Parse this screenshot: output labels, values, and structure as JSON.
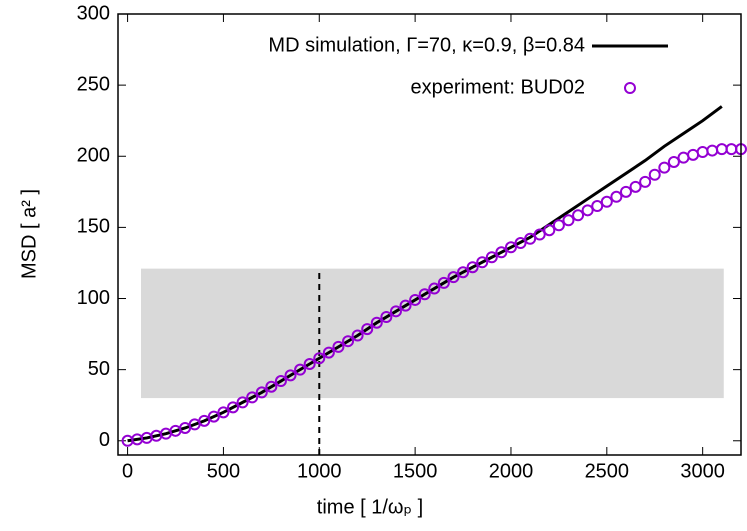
{
  "chart_data": {
    "type": "line",
    "xlabel": "time  [ 1/ωₚ ]",
    "ylabel": "MSD  [ a² ]",
    "xlim": [
      -50,
      3200
    ],
    "ylim": [
      -10,
      300
    ],
    "xticks": [
      0,
      500,
      1000,
      1500,
      2000,
      2500,
      3000
    ],
    "yticks": [
      0,
      50,
      100,
      150,
      200,
      250,
      300
    ],
    "legend": "top-right",
    "shade": {
      "x": [
        70,
        3110
      ],
      "y": [
        30,
        121
      ],
      "color": "#d9d9d9"
    },
    "vline": 1000,
    "series": [
      {
        "name": "MD simulation, Γ=70, κ=0.9, β=0.84",
        "color": "#000000",
        "style": "line",
        "x": [
          0,
          100,
          200,
          300,
          400,
          500,
          600,
          700,
          800,
          900,
          1000,
          1100,
          1200,
          1300,
          1400,
          1500,
          1600,
          1700,
          1800,
          1900,
          2000,
          2100,
          2200,
          2300,
          2400,
          2500,
          2600,
          2700,
          2800,
          2900,
          3000,
          3100
        ],
        "values": [
          0,
          2,
          5,
          9,
          14,
          20,
          27,
          34,
          42,
          50,
          58,
          66,
          74,
          83,
          91,
          99,
          107,
          115,
          122,
          129,
          136,
          143,
          152,
          161,
          170,
          179,
          188,
          197,
          207,
          216,
          225,
          235
        ]
      },
      {
        "name": "experiment: BUD02",
        "color": "#9400d3",
        "style": "points",
        "x": [
          0,
          50,
          100,
          150,
          200,
          250,
          300,
          350,
          400,
          450,
          500,
          550,
          600,
          650,
          700,
          750,
          800,
          850,
          900,
          950,
          1000,
          1050,
          1100,
          1150,
          1200,
          1250,
          1300,
          1350,
          1400,
          1450,
          1500,
          1550,
          1600,
          1650,
          1700,
          1750,
          1800,
          1850,
          1900,
          1950,
          2000,
          2050,
          2100,
          2150,
          2200,
          2250,
          2300,
          2350,
          2400,
          2450,
          2500,
          2550,
          2600,
          2650,
          2700,
          2750,
          2800,
          2850,
          2900,
          2950,
          3000,
          3050,
          3100,
          3150,
          3200
        ],
        "values": [
          0,
          1,
          2,
          3.5,
          5,
          7,
          9,
          11.5,
          14,
          17,
          20,
          23.5,
          27,
          30.5,
          34,
          38,
          42,
          46,
          50,
          54,
          58,
          62,
          66,
          70,
          74,
          78.5,
          83,
          87,
          91,
          95,
          99,
          103,
          107,
          111,
          115,
          118.5,
          122,
          125.5,
          129,
          132.5,
          136,
          139,
          142,
          145,
          148,
          151.5,
          155,
          158.5,
          162,
          165,
          168,
          171.5,
          175,
          178.5,
          182,
          187,
          192,
          196,
          199,
          201,
          203,
          204,
          205,
          205,
          205
        ]
      }
    ]
  }
}
